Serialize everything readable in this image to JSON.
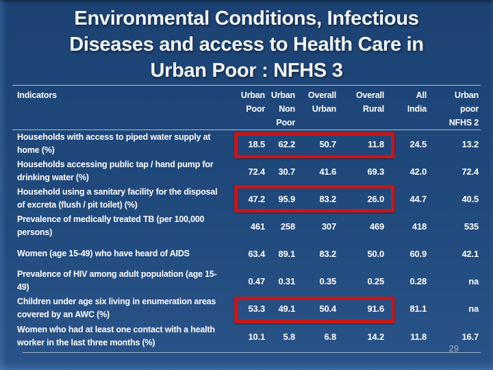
{
  "slide": {
    "title": "Environmental Conditions, Infectious\nDiseases and access to Health Care in\nUrban Poor : NFHS 3",
    "page_number": "29"
  },
  "colors": {
    "background": "#20497c",
    "highlight_border": "#cc1414",
    "rule_line": "#cdd6e2",
    "text": "#ffffff"
  },
  "table": {
    "header": {
      "indicators": "Indicators",
      "columns": [
        "Urban\nPoor",
        "Urban\nNon\nPoor",
        "Overall\nUrban",
        "Overall\nRural",
        "All\nIndia",
        "Urban\npoor\nNFHS 2"
      ]
    },
    "rows": [
      {
        "label": "Households with access to piped water supply at home (%)",
        "values": [
          "18.5",
          "62.2",
          "50.7",
          "11.8",
          "24.5",
          "13.2"
        ],
        "highlighted": true
      },
      {
        "label": "Households accessing public tap / hand pump for drinking water (%)",
        "values": [
          "72.4",
          "30.7",
          "41.6",
          "69.3",
          "42.0",
          "72.4"
        ],
        "highlighted": false
      },
      {
        "label": "Household using a sanitary facility for the disposal of excreta (flush / pit toilet) (%)",
        "values": [
          "47.2",
          "95.9",
          "83.2",
          "26.0",
          "44.7",
          "40.5"
        ],
        "highlighted": true
      },
      {
        "label": "Prevalence of medically treated TB (per 100,000 persons)",
        "values": [
          "461",
          "258",
          "307",
          "469",
          "418",
          "535"
        ],
        "highlighted": false
      },
      {
        "label": "Women (age 15-49) who have heard of AIDS",
        "values": [
          "63.4",
          "89.1",
          "83.2",
          "50.0",
          "60.9",
          "42.1"
        ],
        "highlighted": false
      },
      {
        "label": "Prevalence of HIV among adult population (age 15-49)",
        "values": [
          "0.47",
          "0.31",
          "0.35",
          "0.25",
          "0.28",
          "na"
        ],
        "highlighted": false
      },
      {
        "label": "Children under age six living in  enumeration areas covered by an AWC (%)",
        "values": [
          "53.3",
          "49.1",
          "50.4",
          "91.6",
          "81.1",
          "na"
        ],
        "highlighted": true
      },
      {
        "label": "Women who had at least one contact with a health worker in the last three months (%)",
        "values": [
          "10.1",
          "5.8",
          "6.8",
          "14.2",
          "11.8",
          "16.7"
        ],
        "highlighted": false
      }
    ]
  }
}
